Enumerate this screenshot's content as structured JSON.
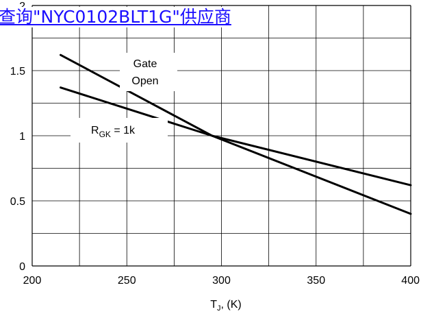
{
  "banner": {
    "link_text": "查询\"NYC0102BLT1G\"供应商"
  },
  "chart_data": {
    "type": "line",
    "title": "",
    "xlabel": "T_J, (K)",
    "ylabel": "",
    "xlim": [
      200,
      400
    ],
    "ylim": [
      0,
      2
    ],
    "x_ticks": [
      "200",
      "250",
      "300",
      "350",
      "400"
    ],
    "y_ticks": [
      "0",
      "0.5",
      "1",
      "1.5",
      "2"
    ],
    "grid": true,
    "series": [
      {
        "name": "Gate Open",
        "x": [
          215,
          295,
          400
        ],
        "y": [
          1.62,
          1.0,
          0.4
        ]
      },
      {
        "name": "R_GK = 1k",
        "x": [
          215,
          295,
          400
        ],
        "y": [
          1.37,
          1.0,
          0.62
        ]
      }
    ],
    "annotations": [
      "Gate",
      "Open",
      "R",
      "GK",
      " = 1k"
    ]
  },
  "colors": {
    "link": "#1a0dff",
    "line": "#000000",
    "grid": "#000000"
  }
}
